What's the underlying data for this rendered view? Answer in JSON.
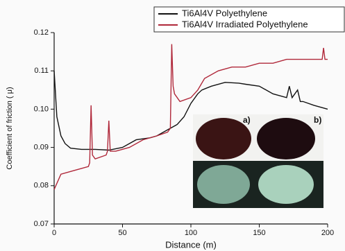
{
  "chart_data": {
    "type": "line",
    "xlabel": "Distance (m)",
    "ylabel": "Coefficient of friction ( μ)",
    "xlim": [
      0,
      200
    ],
    "xticks": [
      0,
      50,
      100,
      150,
      200
    ],
    "ylim": [
      0.07,
      0.12
    ],
    "yticks": [
      0.07,
      0.08,
      0.09,
      {
        "value": 0.1,
        "label": "0.10"
      },
      0.11,
      0.12
    ],
    "series": [
      {
        "name": "Ti6Al4V Polyethylene",
        "color": "#111111",
        "x": [
          0,
          2,
          5,
          8,
          12,
          20,
          30,
          40,
          50,
          60,
          70,
          75,
          80,
          85,
          90,
          95,
          100,
          105,
          108,
          115,
          125,
          135,
          140,
          150,
          160,
          170,
          172,
          174,
          178,
          180,
          182,
          190,
          200
        ],
        "values": [
          0.11,
          0.098,
          0.093,
          0.091,
          0.0898,
          0.0895,
          0.0895,
          0.0893,
          0.09,
          0.092,
          0.0925,
          0.093,
          0.094,
          0.095,
          0.096,
          0.098,
          0.1015,
          0.104,
          0.105,
          0.106,
          0.107,
          0.1068,
          0.1065,
          0.106,
          0.104,
          0.103,
          0.106,
          0.103,
          0.105,
          0.102,
          0.102,
          0.101,
          0.1
        ]
      },
      {
        "name": "Ti6Al4V Irradiated Polyethylene",
        "color": "#b0283a",
        "x": [
          0,
          5,
          15,
          25,
          26,
          27,
          28,
          30,
          38,
          39,
          40,
          41,
          45,
          55,
          65,
          75,
          83,
          85,
          86,
          87,
          88,
          92,
          100,
          105,
          110,
          120,
          130,
          140,
          150,
          160,
          170,
          180,
          190,
          196,
          197,
          198,
          200
        ],
        "values": [
          0.079,
          0.083,
          0.084,
          0.085,
          0.086,
          0.101,
          0.088,
          0.087,
          0.088,
          0.089,
          0.097,
          0.089,
          0.089,
          0.09,
          0.092,
          0.093,
          0.094,
          0.095,
          0.117,
          0.106,
          0.104,
          0.102,
          0.103,
          0.105,
          0.108,
          0.11,
          0.111,
          0.111,
          0.112,
          0.112,
          0.113,
          0.113,
          0.113,
          0.113,
          0.116,
          0.113,
          0.113
        ]
      }
    ],
    "inset_labels": [
      "a)",
      "b)"
    ]
  }
}
